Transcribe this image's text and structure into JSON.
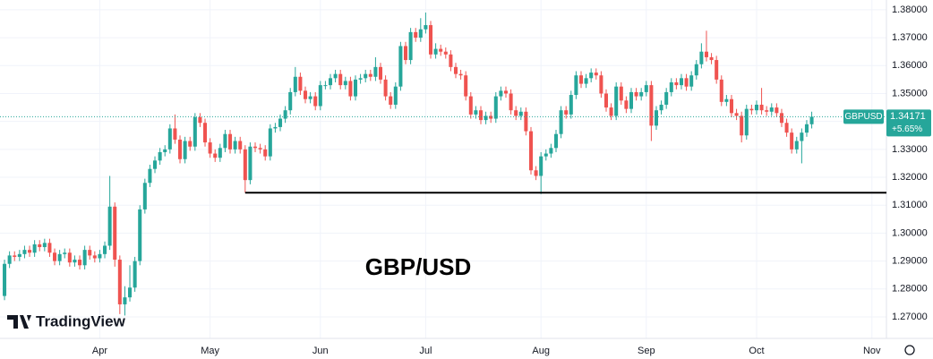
{
  "chart_data": {
    "type": "candlestick",
    "title": "GBP/USD",
    "logo": "TradingView",
    "symbol": "GBPUSD",
    "change_label": "+5.65%",
    "up_color": "#26a69a",
    "down_color": "#ef5350",
    "grid": true,
    "hline": 1.3145,
    "xlim": [
      -0.9,
      175.9
    ],
    "xticks": [
      {
        "value": 19,
        "label": "Apr"
      },
      {
        "value": 41,
        "label": "May"
      },
      {
        "value": 63,
        "label": "Jun"
      },
      {
        "value": 84,
        "label": "Jul"
      },
      {
        "value": 107,
        "label": "Aug"
      },
      {
        "value": 128,
        "label": "Sep"
      },
      {
        "value": 150,
        "label": "Oct"
      },
      {
        "value": 173,
        "label": "Nov"
      }
    ],
    "ylim": [
      1.2623,
      1.3835
    ],
    "yticks": [
      {
        "value": 1.27,
        "label": "1.27000"
      },
      {
        "value": 1.28,
        "label": "1.28000"
      },
      {
        "value": 1.29,
        "label": "1.29000"
      },
      {
        "value": 1.3,
        "label": "1.30000"
      },
      {
        "value": 1.31,
        "label": "1.31000"
      },
      {
        "value": 1.32,
        "label": "1.32000"
      },
      {
        "value": 1.33,
        "label": "1.33000"
      },
      {
        "value": 1.34,
        "label": "1.34000"
      },
      {
        "value": 1.35,
        "label": "1.35000"
      },
      {
        "value": 1.36,
        "label": "1.36000"
      },
      {
        "value": 1.37,
        "label": "1.37000"
      },
      {
        "value": 1.38,
        "label": "1.38000"
      }
    ],
    "open": [
      1.2775,
      1.289,
      1.292,
      1.2915,
      1.2925,
      1.294,
      1.293,
      1.296,
      1.295,
      1.2965,
      1.293,
      1.29,
      1.2925,
      1.293,
      1.2895,
      1.2905,
      1.2885,
      1.294,
      1.292,
      1.291,
      1.2925,
      1.2955,
      1.3095,
      1.2905,
      1.2745,
      1.277,
      1.2805,
      1.29,
      1.3085,
      1.318,
      1.323,
      1.326,
      1.329,
      1.33,
      1.3375,
      1.3335,
      1.3265,
      1.333,
      1.331,
      1.3415,
      1.3395,
      1.3325,
      1.3285,
      1.327,
      1.3305,
      1.3355,
      1.33,
      1.333,
      1.33,
      1.319,
      1.331,
      1.3305,
      1.33,
      1.3275,
      1.3375,
      1.338,
      1.341,
      1.344,
      1.3505,
      1.356,
      1.351,
      1.348,
      1.349,
      1.3455,
      1.353,
      1.353,
      1.3555,
      1.357,
      1.353,
      1.3545,
      1.349,
      1.355,
      1.3555,
      1.357,
      1.356,
      1.3595,
      1.355,
      1.349,
      1.346,
      1.3525,
      1.367,
      1.362,
      1.372,
      1.37,
      1.373,
      1.3745,
      1.364,
      1.366,
      1.365,
      1.364,
      1.3595,
      1.357,
      1.3565,
      1.349,
      1.3425,
      1.344,
      1.3405,
      1.342,
      1.341,
      1.349,
      1.351,
      1.35,
      1.344,
      1.342,
      1.3435,
      1.3365,
      1.3225,
      1.3205,
      1.3275,
      1.3285,
      1.3305,
      1.3355,
      1.344,
      1.3425,
      1.3495,
      1.3565,
      1.3535,
      1.3555,
      1.3575,
      1.3565,
      1.35,
      1.345,
      1.342,
      1.3525,
      1.3475,
      1.3445,
      1.3505,
      1.349,
      1.3505,
      1.353,
      1.3385,
      1.344,
      1.346,
      1.3505,
      1.354,
      1.353,
      1.3555,
      1.3525,
      1.3565,
      1.3605,
      1.365,
      1.363,
      1.362,
      1.355,
      1.347,
      1.348,
      1.343,
      1.342,
      1.335,
      1.3445,
      1.344,
      1.346,
      1.344,
      1.3435,
      1.345,
      1.343,
      1.3395,
      1.336,
      1.33,
      1.333,
      1.336,
      1.339
    ],
    "high": [
      1.2905,
      1.2935,
      1.2935,
      1.294,
      1.2955,
      1.2955,
      1.2975,
      1.2975,
      1.298,
      1.298,
      1.2945,
      1.294,
      1.2945,
      1.2945,
      1.292,
      1.292,
      1.2955,
      1.2955,
      1.2935,
      1.294,
      1.297,
      1.3205,
      1.311,
      1.292,
      1.281,
      1.2885,
      1.2915,
      1.31,
      1.3195,
      1.3245,
      1.3275,
      1.3305,
      1.3315,
      1.339,
      1.3425,
      1.335,
      1.3345,
      1.3345,
      1.343,
      1.343,
      1.341,
      1.334,
      1.33,
      1.332,
      1.337,
      1.337,
      1.3345,
      1.3345,
      1.3315,
      1.3325,
      1.3325,
      1.332,
      1.3315,
      1.339,
      1.3395,
      1.3425,
      1.3455,
      1.352,
      1.3595,
      1.3575,
      1.3525,
      1.3505,
      1.3505,
      1.3545,
      1.3545,
      1.357,
      1.3585,
      1.3585,
      1.356,
      1.356,
      1.3565,
      1.357,
      1.3585,
      1.3585,
      1.363,
      1.361,
      1.3565,
      1.3505,
      1.354,
      1.3685,
      1.3685,
      1.3735,
      1.3735,
      1.377,
      1.379,
      1.376,
      1.368,
      1.3675,
      1.3665,
      1.3655,
      1.361,
      1.3585,
      1.358,
      1.3505,
      1.3455,
      1.3455,
      1.3435,
      1.3435,
      1.3505,
      1.3525,
      1.3525,
      1.3515,
      1.3455,
      1.345,
      1.345,
      1.338,
      1.324,
      1.329,
      1.33,
      1.332,
      1.337,
      1.3455,
      1.3455,
      1.351,
      1.358,
      1.358,
      1.357,
      1.359,
      1.359,
      1.358,
      1.3515,
      1.3465,
      1.354,
      1.354,
      1.349,
      1.352,
      1.352,
      1.352,
      1.3545,
      1.3545,
      1.3455,
      1.3475,
      1.352,
      1.3555,
      1.3555,
      1.357,
      1.357,
      1.358,
      1.362,
      1.368,
      1.3725,
      1.3645,
      1.3635,
      1.3565,
      1.3495,
      1.3495,
      1.3445,
      1.3435,
      1.346,
      1.346,
      1.3475,
      1.352,
      1.3455,
      1.3465,
      1.3465,
      1.3445,
      1.341,
      1.3375,
      1.3345,
      1.3375,
      1.3405,
      1.3435
    ],
    "low": [
      1.276,
      1.2875,
      1.29,
      1.29,
      1.291,
      1.2915,
      1.2915,
      1.2935,
      1.2935,
      1.2915,
      1.2885,
      1.2885,
      1.291,
      1.288,
      1.288,
      1.287,
      1.287,
      1.2905,
      1.2895,
      1.2895,
      1.291,
      1.294,
      1.288,
      1.271,
      1.2705,
      1.2755,
      1.279,
      1.2885,
      1.307,
      1.3165,
      1.3215,
      1.3245,
      1.3275,
      1.3285,
      1.332,
      1.325,
      1.325,
      1.3295,
      1.3295,
      1.338,
      1.331,
      1.327,
      1.3255,
      1.3255,
      1.329,
      1.3285,
      1.3285,
      1.3285,
      1.3145,
      1.3175,
      1.329,
      1.3285,
      1.326,
      1.326,
      1.336,
      1.3365,
      1.3395,
      1.3425,
      1.349,
      1.3495,
      1.3465,
      1.3465,
      1.344,
      1.344,
      1.3515,
      1.3515,
      1.354,
      1.3515,
      1.3515,
      1.3475,
      1.3475,
      1.3535,
      1.354,
      1.3545,
      1.3545,
      1.3535,
      1.3475,
      1.3445,
      1.3445,
      1.351,
      1.3605,
      1.3605,
      1.3685,
      1.3685,
      1.3715,
      1.3625,
      1.3625,
      1.3635,
      1.3625,
      1.358,
      1.3555,
      1.355,
      1.3475,
      1.341,
      1.341,
      1.339,
      1.339,
      1.3395,
      1.3395,
      1.3475,
      1.3485,
      1.3425,
      1.3405,
      1.3405,
      1.335,
      1.321,
      1.319,
      1.314,
      1.326,
      1.327,
      1.329,
      1.334,
      1.341,
      1.341,
      1.348,
      1.352,
      1.352,
      1.354,
      1.355,
      1.3485,
      1.3435,
      1.3405,
      1.3405,
      1.346,
      1.343,
      1.343,
      1.3475,
      1.3475,
      1.349,
      1.333,
      1.337,
      1.3425,
      1.3445,
      1.349,
      1.3515,
      1.3515,
      1.351,
      1.351,
      1.355,
      1.359,
      1.3615,
      1.3605,
      1.3535,
      1.3455,
      1.3455,
      1.3415,
      1.3405,
      1.3325,
      1.3335,
      1.3425,
      1.3425,
      1.3425,
      1.342,
      1.342,
      1.3415,
      1.338,
      1.3345,
      1.3285,
      1.3285,
      1.325,
      1.3345,
      1.3375
    ],
    "close": [
      1.289,
      1.292,
      1.2915,
      1.2925,
      1.294,
      1.293,
      1.296,
      1.295,
      1.2965,
      1.293,
      1.29,
      1.2925,
      1.293,
      1.2895,
      1.2905,
      1.2885,
      1.294,
      1.292,
      1.291,
      1.2925,
      1.2955,
      1.3095,
      1.2905,
      1.2745,
      1.277,
      1.2805,
      1.29,
      1.3085,
      1.318,
      1.323,
      1.326,
      1.329,
      1.33,
      1.3375,
      1.3335,
      1.3265,
      1.333,
      1.331,
      1.3415,
      1.3395,
      1.3325,
      1.3285,
      1.327,
      1.3305,
      1.3355,
      1.33,
      1.333,
      1.33,
      1.319,
      1.331,
      1.3305,
      1.33,
      1.3275,
      1.3375,
      1.338,
      1.341,
      1.344,
      1.3505,
      1.356,
      1.351,
      1.348,
      1.349,
      1.3455,
      1.353,
      1.353,
      1.3555,
      1.357,
      1.353,
      1.3545,
      1.349,
      1.355,
      1.3555,
      1.357,
      1.356,
      1.3595,
      1.355,
      1.349,
      1.346,
      1.3525,
      1.367,
      1.362,
      1.372,
      1.37,
      1.373,
      1.3745,
      1.364,
      1.366,
      1.365,
      1.364,
      1.3595,
      1.357,
      1.3565,
      1.349,
      1.3425,
      1.344,
      1.3405,
      1.342,
      1.341,
      1.349,
      1.351,
      1.35,
      1.344,
      1.342,
      1.3435,
      1.3365,
      1.3225,
      1.3205,
      1.3275,
      1.3285,
      1.3305,
      1.3355,
      1.344,
      1.3425,
      1.3495,
      1.3565,
      1.3535,
      1.3555,
      1.3575,
      1.3565,
      1.35,
      1.345,
      1.342,
      1.3525,
      1.3475,
      1.3445,
      1.3505,
      1.349,
      1.3505,
      1.353,
      1.3385,
      1.344,
      1.346,
      1.3505,
      1.354,
      1.353,
      1.3555,
      1.3525,
      1.3565,
      1.3605,
      1.365,
      1.363,
      1.362,
      1.355,
      1.347,
      1.348,
      1.343,
      1.342,
      1.335,
      1.3445,
      1.344,
      1.346,
      1.344,
      1.3435,
      1.345,
      1.343,
      1.3395,
      1.336,
      1.33,
      1.333,
      1.336,
      1.339,
      1.34171
    ]
  }
}
